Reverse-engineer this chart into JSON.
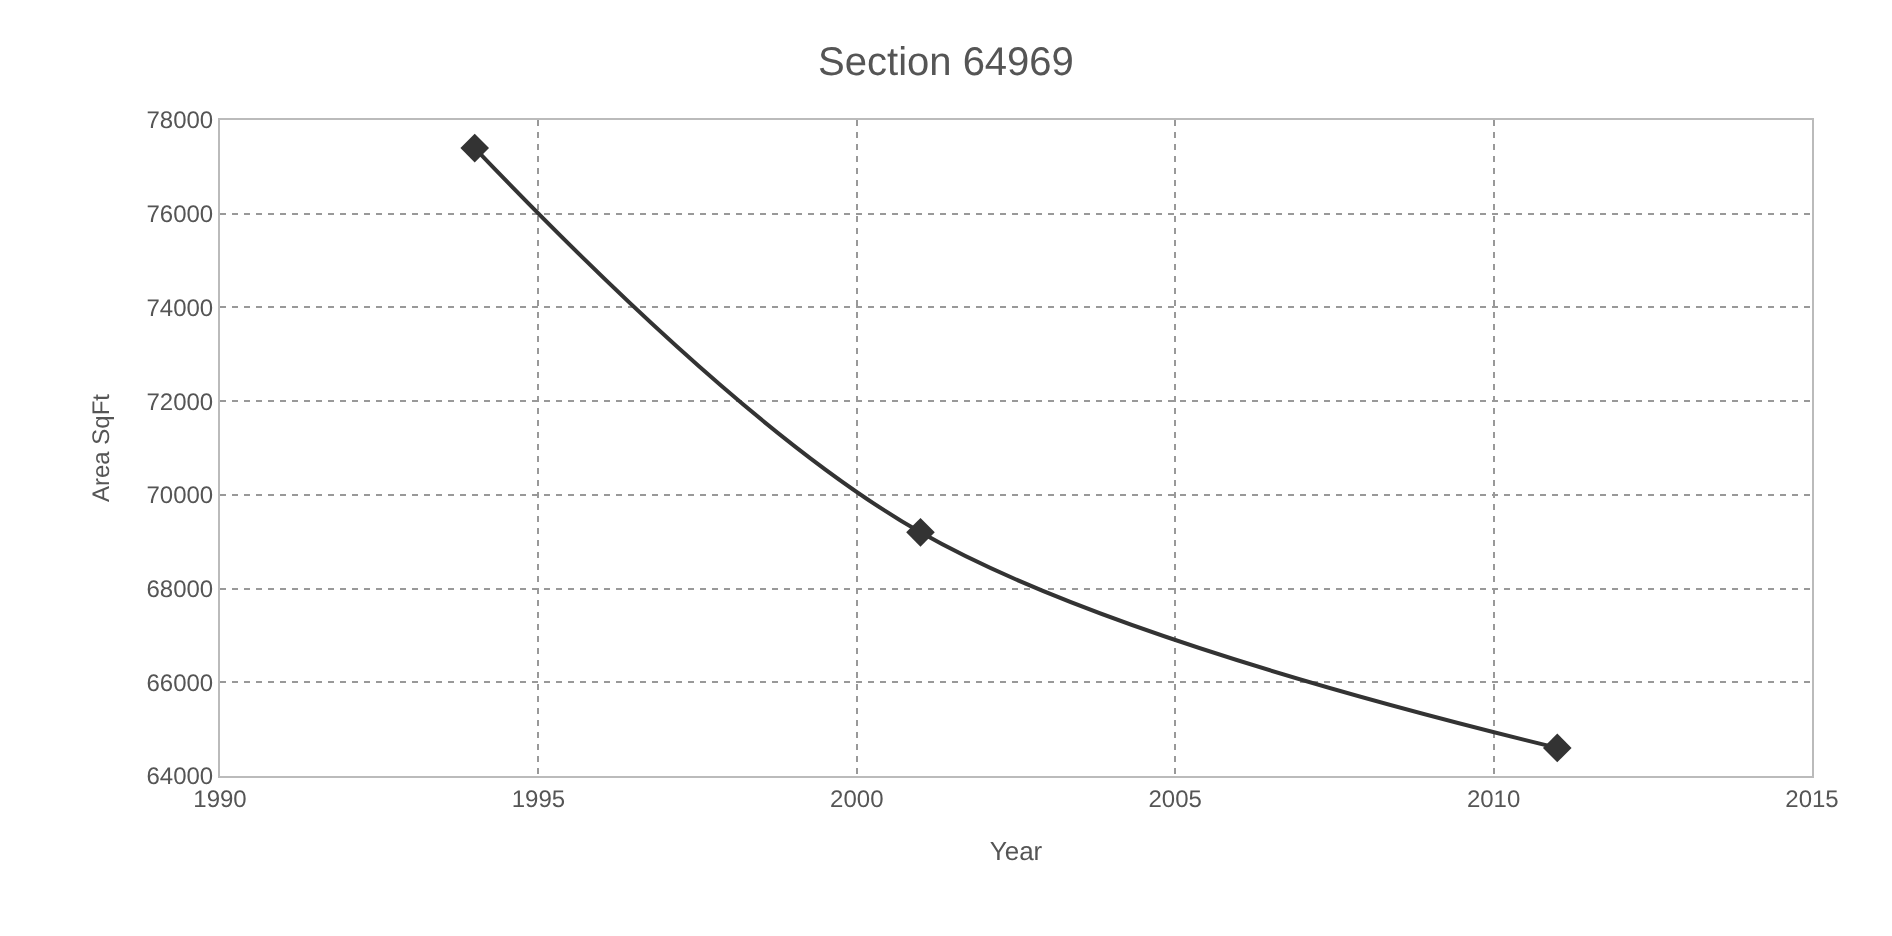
{
  "chart_data": {
    "type": "line",
    "title": "Section 64969",
    "xlabel": "Year",
    "ylabel": "Area SqFt",
    "x": [
      1994,
      2001,
      2011
    ],
    "series": [
      {
        "color": "#333333",
        "values": [
          77400,
          69200,
          64600
        ]
      }
    ],
    "xlim": [
      1990,
      2015
    ],
    "xticks": [
      1990,
      1995,
      2000,
      2005,
      2010,
      2015
    ],
    "ylim": [
      64000,
      78000
    ],
    "yticks": [
      64000,
      66000,
      68000,
      70000,
      72000,
      74000,
      76000,
      78000
    ],
    "grid": true,
    "marker": "diamond",
    "line_style": "solid"
  }
}
